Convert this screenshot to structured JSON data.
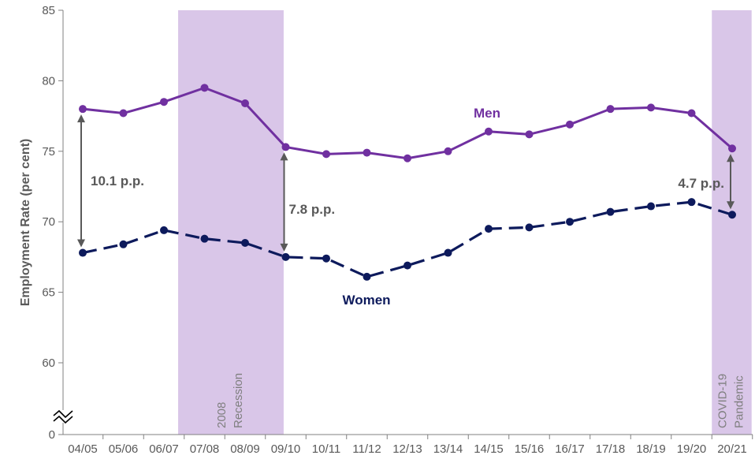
{
  "chart_data": {
    "type": "line",
    "ylabel": "Employment Rate (per cent)",
    "xlabel": "",
    "ylim": [
      0,
      85
    ],
    "axis_break": true,
    "yticks": [
      0,
      60,
      65,
      70,
      75,
      80,
      85
    ],
    "categories": [
      "04/05",
      "05/06",
      "06/07",
      "07/08",
      "08/09",
      "09/10",
      "10/11",
      "11/12",
      "12/13",
      "13/14",
      "14/15",
      "15/16",
      "16/17",
      "17/18",
      "18/19",
      "19/20",
      "20/21"
    ],
    "series": [
      {
        "name": "Men",
        "color": "#7030a0",
        "style": "solid",
        "values": [
          78.0,
          77.7,
          78.5,
          79.5,
          78.4,
          75.3,
          74.8,
          74.9,
          74.5,
          75.0,
          76.4,
          76.2,
          76.9,
          78.0,
          78.1,
          77.7,
          75.2
        ]
      },
      {
        "name": "Women",
        "color": "#0d1a5c",
        "style": "dashed",
        "values": [
          67.8,
          68.4,
          69.4,
          68.8,
          68.5,
          67.5,
          67.4,
          66.1,
          66.9,
          67.8,
          69.5,
          69.6,
          70.0,
          70.7,
          71.1,
          71.4,
          70.5
        ]
      }
    ],
    "shaded_periods": [
      {
        "label_lines": [
          "2008",
          "Recession"
        ],
        "from": "07/08",
        "to": "09/10",
        "color": "#d9c6e8"
      },
      {
        "label_lines": [
          "COVID-19",
          "Pandemic"
        ],
        "from": "20/21",
        "to": "20/21",
        "color": "#d9c6e8"
      }
    ],
    "annotations": [
      {
        "text": "10.1 p.p.",
        "category": "04/05",
        "from": 67.8,
        "to": 78.0
      },
      {
        "text": "7.8 p.p.",
        "category": "09/10",
        "from": 67.5,
        "to": 75.3
      },
      {
        "text": "4.7 p.p.",
        "category": "20/21",
        "from": 70.5,
        "to": 75.2
      }
    ],
    "grid": false,
    "legend": "inline labels"
  }
}
